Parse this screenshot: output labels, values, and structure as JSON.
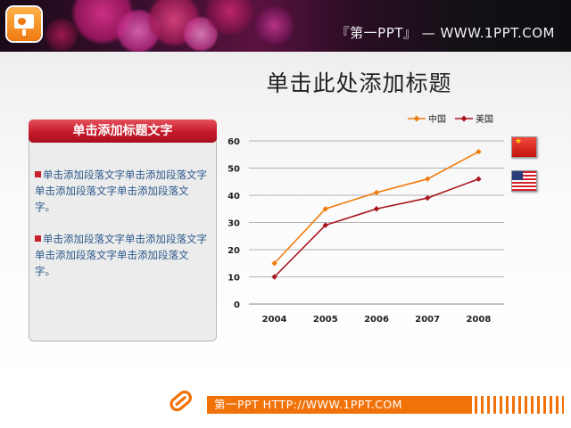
{
  "header": {
    "banner_text": "『第一PPT』 — WWW.1PPT.COM",
    "logo_icon": "powerpoint-icon"
  },
  "main": {
    "title": "单击此处添加标题"
  },
  "side_panel": {
    "heading": "单击添加标题文字",
    "paragraphs": [
      "单击添加段落文字单击添加段落文字单击添加段落文字单击添加段落文字。",
      "单击添加段落文字单击添加段落文字单击添加段落文字单击添加段落文字。"
    ]
  },
  "legend": {
    "china": "中国",
    "usa": "美国"
  },
  "footer": {
    "text": "第一PPT HTTP://WWW.1PPT.COM",
    "icon": "paperclip-icon"
  },
  "colors": {
    "china_series": "#f07d10",
    "usa_series": "#a8151e",
    "header_red": "#c7192b",
    "footer_orange": "#f2720a"
  },
  "chart_data": {
    "type": "line",
    "categories": [
      "2004",
      "2005",
      "2006",
      "2007",
      "2008"
    ],
    "series": [
      {
        "name": "中国",
        "values": [
          15,
          35,
          41,
          46,
          56
        ],
        "color": "#f07d10"
      },
      {
        "name": "美国",
        "values": [
          10,
          29,
          35,
          39,
          46
        ],
        "color": "#a8151e"
      }
    ],
    "ylim": [
      0,
      60
    ],
    "yticks": [
      0,
      10,
      20,
      30,
      40,
      50,
      60
    ],
    "title": "",
    "xlabel": "",
    "ylabel": "",
    "grid": true,
    "legend_position": "top-right"
  }
}
